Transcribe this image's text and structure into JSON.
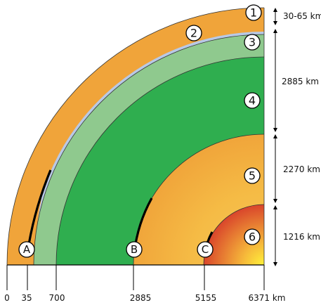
{
  "layers": [
    {
      "number": "1",
      "label": "1",
      "thickness": "30-65 km"
    },
    {
      "number": "2",
      "label": "2",
      "thickness": ""
    },
    {
      "number": "3",
      "label": "3",
      "thickness": ""
    },
    {
      "number": "4",
      "label": "4",
      "thickness": "2885 km"
    },
    {
      "number": "5",
      "label": "5",
      "thickness": "2270 km"
    },
    {
      "number": "6",
      "label": "6",
      "thickness": "1216 km"
    }
  ],
  "markers": [
    {
      "letter": "A"
    },
    {
      "letter": "B"
    },
    {
      "letter": "C"
    }
  ],
  "axis": {
    "ticks": [
      "0",
      "35",
      "700",
      "2885",
      "5155",
      "6371 km"
    ]
  },
  "colors": {
    "crust": "#f0a43a",
    "upper_mantle": "#8fc98e",
    "lower_mantle": "#2fae4f",
    "outer_core_light": "#f7c85a",
    "outer_core_dark": "#f0a43a",
    "inner_core_center": "#ffe23a",
    "inner_core_edge": "#d9452b",
    "lithosphere_band": "#b8c9e6",
    "line": "#111111"
  }
}
